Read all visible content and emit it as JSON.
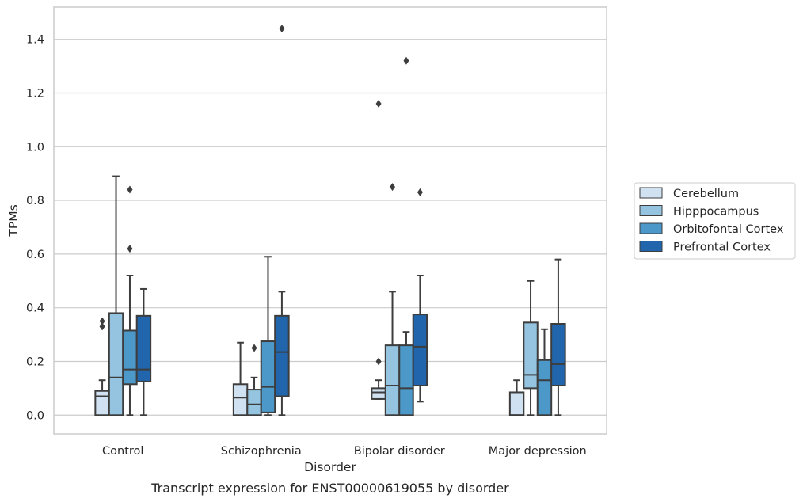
{
  "caption": "Transcript expression for ENST00000619055 by disorder",
  "chart_data": {
    "type": "boxplot",
    "xlabel": "Disorder",
    "ylabel": "TPMs",
    "ylim": [
      -0.07,
      1.52
    ],
    "yticks": [
      0.0,
      0.2,
      0.4,
      0.6,
      0.8,
      1.0,
      1.2,
      1.4
    ],
    "ytick_labels": [
      "0.0",
      "0.2",
      "0.4",
      "0.6",
      "0.8",
      "1.0",
      "1.2",
      "1.4"
    ],
    "grid": "horizontal",
    "legend_placement": "right, outside plot",
    "categories": [
      "Control",
      "Schizophrenia",
      "Bipolar disorder",
      "Major depression"
    ],
    "series": [
      {
        "name": "Cerebellum",
        "color": "#d0e1f2",
        "boxes": [
          {
            "whislo": 0.0,
            "q1": 0.0,
            "med": 0.07,
            "q3": 0.09,
            "whishi": 0.13,
            "fliers": [
              0.33,
              0.35
            ]
          },
          {
            "whislo": 0.0,
            "q1": 0.0,
            "med": 0.065,
            "q3": 0.115,
            "whishi": 0.27,
            "fliers": []
          },
          {
            "whislo": 0.06,
            "q1": 0.06,
            "med": 0.085,
            "q3": 0.1,
            "whishi": 0.13,
            "fliers": [
              0.2,
              1.16
            ]
          },
          {
            "whislo": 0.0,
            "q1": 0.0,
            "med": 0.0,
            "q3": 0.085,
            "whishi": 0.13,
            "fliers": []
          }
        ]
      },
      {
        "name": "Hipppocampus",
        "color": "#94c4df",
        "boxes": [
          {
            "whislo": 0.0,
            "q1": 0.0,
            "med": 0.14,
            "q3": 0.38,
            "whishi": 0.89,
            "fliers": []
          },
          {
            "whislo": 0.0,
            "q1": 0.0,
            "med": 0.04,
            "q3": 0.095,
            "whishi": 0.14,
            "fliers": [
              0.25
            ]
          },
          {
            "whislo": 0.0,
            "q1": 0.0,
            "med": 0.11,
            "q3": 0.26,
            "whishi": 0.46,
            "fliers": [
              0.85
            ]
          },
          {
            "whislo": 0.0,
            "q1": 0.1,
            "med": 0.15,
            "q3": 0.345,
            "whishi": 0.5,
            "fliers": []
          }
        ]
      },
      {
        "name": "Orbitofontal Cortex",
        "color": "#4b98c9",
        "boxes": [
          {
            "whislo": 0.0,
            "q1": 0.115,
            "med": 0.17,
            "q3": 0.315,
            "whishi": 0.52,
            "fliers": [
              0.62,
              0.84
            ]
          },
          {
            "whislo": 0.0,
            "q1": 0.01,
            "med": 0.105,
            "q3": 0.275,
            "whishi": 0.59,
            "fliers": []
          },
          {
            "whislo": 0.0,
            "q1": 0.0,
            "med": 0.1,
            "q3": 0.26,
            "whishi": 0.31,
            "fliers": [
              1.32
            ]
          },
          {
            "whislo": 0.0,
            "q1": 0.0,
            "med": 0.13,
            "q3": 0.205,
            "whishi": 0.32,
            "fliers": []
          }
        ]
      },
      {
        "name": "Prefrontal Cortex",
        "color": "#2166ac",
        "boxes": [
          {
            "whislo": 0.0,
            "q1": 0.125,
            "med": 0.17,
            "q3": 0.37,
            "whishi": 0.47,
            "fliers": []
          },
          {
            "whislo": 0.0,
            "q1": 0.07,
            "med": 0.235,
            "q3": 0.37,
            "whishi": 0.46,
            "fliers": [
              1.44
            ]
          },
          {
            "whislo": 0.05,
            "q1": 0.11,
            "med": 0.255,
            "q3": 0.375,
            "whishi": 0.52,
            "fliers": [
              0.83
            ]
          },
          {
            "whislo": 0.0,
            "q1": 0.11,
            "med": 0.19,
            "q3": 0.34,
            "whishi": 0.58,
            "fliers": []
          }
        ]
      }
    ]
  }
}
